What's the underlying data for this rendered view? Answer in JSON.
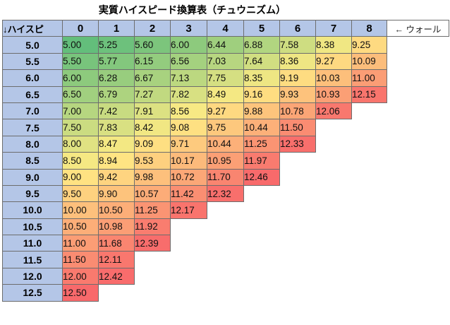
{
  "title": "実質ハイスピード換算表（チュウニズム）",
  "corner_label": "↓ハイスピ",
  "right_note": "← ウォール",
  "columns": [
    "0",
    "1",
    "2",
    "3",
    "4",
    "5",
    "6",
    "7",
    "8"
  ],
  "rows": [
    {
      "label": "5.0",
      "values": [
        "5.00",
        "5.25",
        "5.60",
        "6.00",
        "6.44",
        "6.88",
        "7.58",
        "8.38",
        "9.25"
      ]
    },
    {
      "label": "5.5",
      "values": [
        "5.50",
        "5.77",
        "6.15",
        "6.56",
        "7.03",
        "7.64",
        "8.36",
        "9.27",
        "10.09"
      ]
    },
    {
      "label": "6.0",
      "values": [
        "6.00",
        "6.28",
        "6.67",
        "7.13",
        "7.75",
        "8.35",
        "9.19",
        "10.03",
        "11.00"
      ]
    },
    {
      "label": "6.5",
      "values": [
        "6.50",
        "6.79",
        "7.27",
        "7.82",
        "8.49",
        "9.16",
        "9.93",
        "10.93",
        "12.15"
      ]
    },
    {
      "label": "7.0",
      "values": [
        "7.00",
        "7.42",
        "7.91",
        "8.56",
        "9.27",
        "9.88",
        "10.78",
        "12.06"
      ]
    },
    {
      "label": "7.5",
      "values": [
        "7.50",
        "7.83",
        "8.42",
        "9.08",
        "9.75",
        "10.44",
        "11.50"
      ]
    },
    {
      "label": "8.0",
      "values": [
        "8.00",
        "8.47",
        "9.09",
        "9.71",
        "10.44",
        "11.25",
        "12.33"
      ]
    },
    {
      "label": "8.5",
      "values": [
        "8.50",
        "8.94",
        "9.53",
        "10.17",
        "10.95",
        "11.97"
      ]
    },
    {
      "label": "9.0",
      "values": [
        "9.00",
        "9.42",
        "9.98",
        "10.72",
        "11.70",
        "12.46"
      ]
    },
    {
      "label": "9.5",
      "values": [
        "9.50",
        "9.90",
        "10.57",
        "11.42",
        "12.32"
      ]
    },
    {
      "label": "10.0",
      "values": [
        "10.00",
        "10.50",
        "11.25",
        "12.17"
      ]
    },
    {
      "label": "10.5",
      "values": [
        "10.50",
        "10.98",
        "11.92"
      ]
    },
    {
      "label": "11.0",
      "values": [
        "11.00",
        "11.68",
        "12.39"
      ]
    },
    {
      "label": "11.5",
      "values": [
        "11.50",
        "12.11"
      ]
    },
    {
      "label": "12.0",
      "values": [
        "12.00",
        "12.42"
      ]
    },
    {
      "label": "12.5",
      "values": [
        "12.50"
      ]
    }
  ],
  "colors": {
    "header_bg": "#b4c6e7",
    "scale_low": "#63be7b",
    "scale_mid": "#ffeb84",
    "scale_high": "#f8696b"
  }
}
